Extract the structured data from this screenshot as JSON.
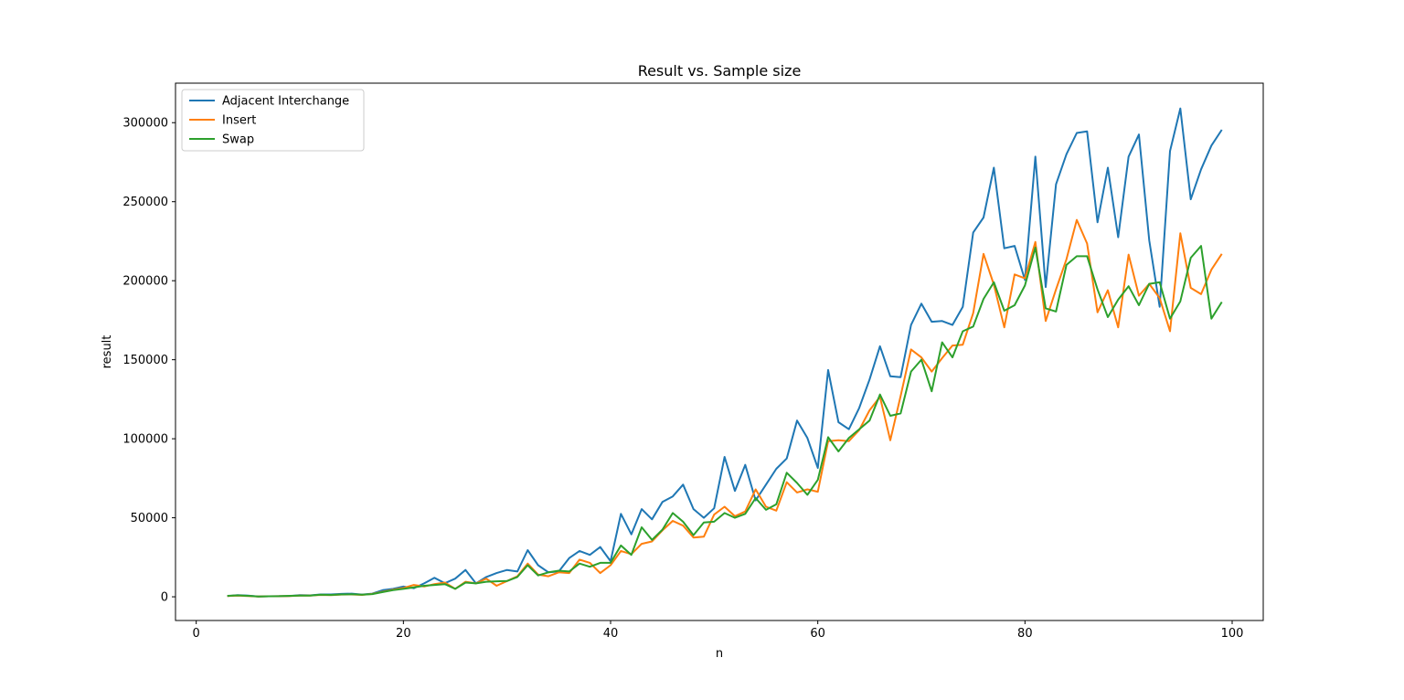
{
  "chart_data": {
    "type": "line",
    "title": "Result vs. Sample size",
    "xlabel": "n",
    "ylabel": "result",
    "xlim": [
      -2,
      103
    ],
    "ylim": [
      -15000,
      325000
    ],
    "xticks": [
      0,
      20,
      40,
      60,
      80,
      100
    ],
    "yticks": [
      0,
      50000,
      100000,
      150000,
      200000,
      250000,
      300000
    ],
    "grid": false,
    "legend_position": "top-left",
    "x": [
      3,
      4,
      5,
      6,
      7,
      8,
      9,
      10,
      11,
      12,
      13,
      14,
      15,
      16,
      17,
      18,
      19,
      20,
      21,
      22,
      23,
      24,
      25,
      26,
      27,
      28,
      29,
      30,
      31,
      32,
      33,
      34,
      35,
      36,
      37,
      38,
      39,
      40,
      41,
      42,
      43,
      44,
      45,
      46,
      47,
      48,
      49,
      50,
      51,
      52,
      53,
      54,
      55,
      56,
      57,
      58,
      59,
      60,
      61,
      62,
      63,
      64,
      65,
      66,
      67,
      68,
      69,
      70,
      71,
      72,
      73,
      74,
      75,
      76,
      77,
      78,
      79,
      80,
      81,
      82,
      83,
      84,
      85,
      86,
      87,
      88,
      89,
      90,
      91,
      92,
      93,
      94,
      95,
      96,
      97,
      98,
      99
    ],
    "series": [
      {
        "name": "Adjacent Interchange",
        "color": "#1f77b4",
        "values": [
          500,
          1000,
          700,
          200,
          300,
          400,
          500,
          1000,
          900,
          1500,
          1500,
          1800,
          2000,
          1400,
          2000,
          4200,
          5000,
          6500,
          5400,
          8500,
          12000,
          8600,
          11500,
          17000,
          8500,
          12500,
          15000,
          17000,
          16000,
          29500,
          20000,
          15500,
          16000,
          24500,
          29000,
          26500,
          31500,
          22500,
          52500,
          39500,
          55500,
          49000,
          60000,
          63500,
          71000,
          55500,
          50000,
          56000,
          88500,
          67000,
          83500,
          61000,
          71000,
          81000,
          87500,
          111500,
          100500,
          81500,
          143500,
          110500,
          106000,
          119500,
          137500,
          158500,
          139500,
          139000,
          172000,
          185500,
          174000,
          174500,
          172000,
          183500,
          230500,
          240000,
          271500,
          220500,
          222000,
          200500,
          278500,
          196000,
          261000,
          280000,
          293500,
          294500,
          237000,
          271500,
          227500,
          278500,
          292500,
          225500,
          183500,
          282000,
          309000,
          251500,
          270500,
          285500,
          295500
        ]
      },
      {
        "name": "Insert",
        "color": "#ff7f0e",
        "values": [
          500,
          800,
          500,
          200,
          300,
          400,
          500,
          700,
          800,
          1200,
          1100,
          1400,
          1500,
          1200,
          1800,
          3200,
          4500,
          5500,
          7500,
          6500,
          8000,
          9000,
          5000,
          9500,
          8500,
          11500,
          7000,
          10000,
          13000,
          21000,
          14000,
          13000,
          15500,
          15000,
          23500,
          21500,
          15000,
          20000,
          29000,
          27000,
          33500,
          35000,
          42000,
          48000,
          45000,
          37500,
          38000,
          52000,
          57000,
          51000,
          54000,
          68000,
          57000,
          54500,
          72500,
          66000,
          68000,
          66500,
          98500,
          99000,
          98500,
          105500,
          118000,
          126500,
          99000,
          127000,
          156500,
          151500,
          142500,
          151000,
          159000,
          159500,
          179500,
          217000,
          197500,
          170500,
          204000,
          201500,
          224500,
          174500,
          194500,
          213500,
          238500,
          223500,
          180000,
          194000,
          170500,
          216500,
          190500,
          198000,
          189000,
          168000,
          230000,
          195500,
          191500,
          207000,
          217000
        ]
      },
      {
        "name": "Swap",
        "color": "#2ca02c",
        "values": [
          600,
          900,
          600,
          200,
          300,
          400,
          600,
          800,
          800,
          1300,
          1200,
          1500,
          1600,
          1300,
          1700,
          3000,
          4200,
          5000,
          6000,
          7000,
          7500,
          8000,
          5000,
          9000,
          8500,
          9500,
          9800,
          10000,
          12500,
          20000,
          13500,
          15500,
          16500,
          16000,
          21000,
          19000,
          21500,
          21500,
          32500,
          26500,
          44000,
          36000,
          42500,
          53000,
          47500,
          39000,
          47000,
          47500,
          53000,
          50000,
          52500,
          62500,
          55000,
          58500,
          78500,
          72000,
          64500,
          74000,
          101000,
          92000,
          100500,
          106000,
          111500,
          128000,
          114500,
          116000,
          142500,
          150000,
          130000,
          161000,
          151500,
          168000,
          171000,
          188500,
          199000,
          181000,
          184500,
          197000,
          221000,
          182500,
          180500,
          210000,
          215500,
          215500,
          194500,
          177000,
          188000,
          196500,
          184500,
          198000,
          199000,
          176000,
          187000,
          214500,
          222000,
          176000,
          186500
        ]
      }
    ]
  }
}
